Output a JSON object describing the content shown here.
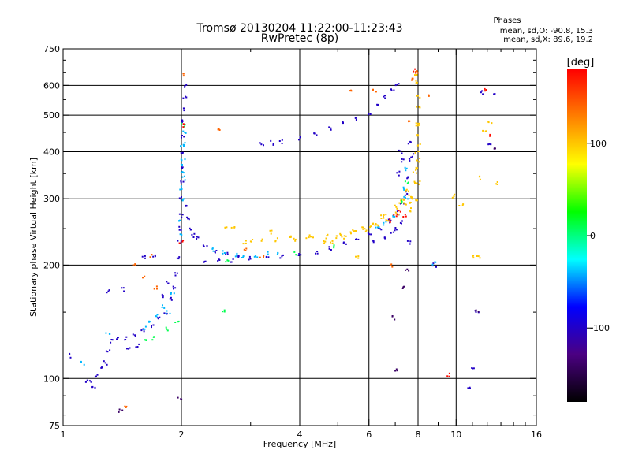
{
  "header": {
    "title": "Tromsø 20130204 11:22:00-11:23:43",
    "subtitle": "RwPretec (8p)"
  },
  "phases_box": {
    "heading": "Phases",
    "line_o": "mean, sd,O:  -90.8, 15.3",
    "line_x": "mean, sd,X:   89.6, 19.2"
  },
  "colorbar": {
    "unit_label": "[deg]",
    "tick_labels": [
      "100",
      "0",
      "-100"
    ],
    "tick_values": [
      100,
      0,
      -100
    ],
    "range": [
      -180,
      180
    ],
    "gradient_colors": [
      "#000000",
      "#4b0082",
      "#0000ff",
      "#00ffff",
      "#00ff00",
      "#ffff00",
      "#ff8000",
      "#ff0000"
    ]
  },
  "chart_data": {
    "type": "scatter",
    "xlabel": "Frequency [MHz]",
    "ylabel": "Stationary phase Virtual Height [km]",
    "x_scale": "log",
    "y_scale": "log",
    "xlim": [
      1,
      16
    ],
    "ylim": [
      75,
      750
    ],
    "x_ticks": [
      1,
      2,
      4,
      6,
      8,
      10,
      16
    ],
    "x_tick_labels": [
      "1",
      "2",
      "4",
      "6",
      "8",
      "10",
      "16"
    ],
    "x_gridlines": [
      2,
      4,
      6,
      8,
      10
    ],
    "y_ticks": [
      75,
      100,
      200,
      300,
      400,
      500,
      600,
      750
    ],
    "y_tick_labels": [
      "75",
      "100",
      "200",
      "300",
      "400",
      "500",
      "600",
      "750"
    ],
    "y_gridlines": [
      100,
      200,
      300,
      400,
      500,
      600
    ],
    "grid": true,
    "series": [
      {
        "mode": "O",
        "color_value": -100,
        "points": [
          [
            1.18,
            98
          ],
          [
            1.22,
            102
          ],
          [
            1.25,
            106
          ],
          [
            1.28,
            110
          ],
          [
            1.3,
            118
          ],
          [
            1.33,
            126
          ],
          [
            1.38,
            128
          ],
          [
            1.45,
            128
          ],
          [
            1.52,
            130
          ],
          [
            1.6,
            134
          ],
          [
            1.68,
            138
          ],
          [
            1.75,
            144
          ],
          [
            1.82,
            150
          ],
          [
            1.88,
            162
          ],
          [
            1.92,
            175
          ],
          [
            1.95,
            190
          ],
          [
            1.97,
            210
          ],
          [
            1.98,
            230
          ],
          [
            1.99,
            250
          ],
          [
            2.0,
            270
          ],
          [
            2.0,
            300
          ],
          [
            2.01,
            330
          ],
          [
            2.01,
            360
          ],
          [
            2.02,
            400
          ],
          [
            2.02,
            440
          ],
          [
            2.03,
            480
          ],
          [
            2.03,
            520
          ],
          [
            2.04,
            560
          ],
          [
            2.04,
            600
          ],
          [
            2.05,
            290
          ],
          [
            2.07,
            265
          ],
          [
            2.1,
            250
          ],
          [
            2.15,
            240
          ],
          [
            2.2,
            235
          ],
          [
            2.3,
            225
          ],
          [
            2.45,
            218
          ],
          [
            2.6,
            214
          ],
          [
            2.8,
            210
          ],
          [
            3.0,
            208
          ],
          [
            3.3,
            208
          ],
          [
            3.6,
            210
          ],
          [
            4.0,
            213
          ],
          [
            4.4,
            217
          ],
          [
            4.8,
            222
          ],
          [
            5.2,
            228
          ],
          [
            5.6,
            235
          ],
          [
            6.0,
            242
          ],
          [
            6.4,
            250
          ],
          [
            6.8,
            262
          ],
          [
            7.1,
            275
          ],
          [
            7.3,
            290
          ],
          [
            7.45,
            310
          ],
          [
            7.55,
            340
          ],
          [
            7.6,
            380
          ],
          [
            7.65,
            420
          ],
          [
            3.2,
            420
          ],
          [
            3.4,
            422
          ],
          [
            3.6,
            425
          ],
          [
            4.0,
            435
          ],
          [
            4.4,
            445
          ],
          [
            4.8,
            462
          ],
          [
            5.2,
            475
          ],
          [
            5.6,
            490
          ],
          [
            6.0,
            505
          ],
          [
            6.3,
            530
          ],
          [
            6.6,
            560
          ],
          [
            6.9,
            585
          ],
          [
            7.1,
            600
          ],
          [
            1.47,
            120
          ],
          [
            1.55,
            122
          ],
          [
            1.6,
            210
          ],
          [
            1.7,
            212
          ],
          [
            2.3,
            205
          ],
          [
            2.5,
            205
          ],
          [
            2.7,
            206
          ],
          [
            1.3,
            170
          ],
          [
            1.42,
            172
          ],
          [
            1.05,
            115
          ],
          [
            1.15,
            98
          ],
          [
            1.2,
            95
          ],
          [
            1.78,
            165
          ],
          [
            1.85,
            180
          ],
          [
            7.2,
            400
          ],
          [
            7.3,
            380
          ],
          [
            7.1,
            350
          ],
          [
            7.25,
            260
          ],
          [
            7.0,
            250
          ],
          [
            6.9,
            245
          ],
          [
            6.6,
            235
          ],
          [
            6.2,
            230
          ],
          [
            12.2,
            415
          ],
          [
            12.6,
            570
          ],
          [
            11.6,
            575
          ],
          [
            11.3,
            150
          ],
          [
            10.8,
            95
          ],
          [
            11.0,
            107
          ],
          [
            7.7,
            390
          ],
          [
            8.8,
            200
          ],
          [
            7.6,
            230
          ]
        ]
      },
      {
        "mode": "X",
        "color_value": 100,
        "points": [
          [
            2.9,
            230
          ],
          [
            3.2,
            232
          ],
          [
            3.5,
            233
          ],
          [
            3.9,
            234
          ],
          [
            4.3,
            236
          ],
          [
            4.7,
            238
          ],
          [
            5.1,
            240
          ],
          [
            5.5,
            244
          ],
          [
            5.9,
            248
          ],
          [
            6.3,
            255
          ],
          [
            6.7,
            265
          ],
          [
            7.1,
            275
          ],
          [
            7.4,
            290
          ],
          [
            7.65,
            305
          ],
          [
            7.8,
            330
          ],
          [
            7.9,
            360
          ],
          [
            7.95,
            400
          ],
          [
            7.98,
            440
          ],
          [
            8.0,
            480
          ],
          [
            8.0,
            520
          ],
          [
            8.0,
            560
          ],
          [
            7.95,
            610
          ],
          [
            7.9,
            640
          ],
          [
            2.6,
            250
          ],
          [
            3.4,
            245
          ],
          [
            3.8,
            240
          ],
          [
            4.2,
            238
          ],
          [
            4.6,
            230
          ],
          [
            5.0,
            238
          ],
          [
            5.4,
            245
          ],
          [
            5.8,
            250
          ],
          [
            6.2,
            258
          ],
          [
            6.6,
            270
          ],
          [
            7.0,
            285
          ],
          [
            7.3,
            300
          ],
          [
            7.5,
            315
          ],
          [
            7.7,
            280
          ],
          [
            7.9,
            300
          ],
          [
            8.0,
            330
          ],
          [
            8.05,
            380
          ],
          [
            8.05,
            420
          ],
          [
            7.8,
            300
          ],
          [
            7.6,
            290
          ],
          [
            3.0,
            233
          ],
          [
            2.7,
            252
          ],
          [
            6.1,
            255
          ],
          [
            6.5,
            268
          ],
          [
            7.2,
            295
          ],
          [
            7.85,
            355
          ],
          [
            7.98,
            470
          ],
          [
            11.5,
            340
          ],
          [
            12.2,
            480
          ],
          [
            11.8,
            450
          ],
          [
            12.8,
            330
          ],
          [
            9.8,
            305
          ],
          [
            10.3,
            290
          ],
          [
            11.4,
            210
          ],
          [
            11.0,
            210
          ],
          [
            5.6,
            210
          ],
          [
            4.8,
            230
          ],
          [
            5.2,
            237
          ]
        ]
      },
      {
        "mode": "cyan",
        "color_value": -40,
        "points": [
          [
            2.0,
            320
          ],
          [
            2.01,
            350
          ],
          [
            2.02,
            380
          ],
          [
            1.99,
            260
          ],
          [
            2.03,
            300
          ],
          [
            2.02,
            420
          ],
          [
            1.98,
            240
          ],
          [
            2.0,
            370
          ],
          [
            2.01,
            410
          ],
          [
            2.04,
            450
          ],
          [
            2.03,
            340
          ],
          [
            2.4,
            220
          ],
          [
            2.55,
            216
          ],
          [
            2.75,
            212
          ],
          [
            2.85,
            210
          ],
          [
            3.1,
            212
          ],
          [
            3.3,
            215
          ],
          [
            3.55,
            214
          ],
          [
            1.65,
            142
          ],
          [
            1.72,
            148
          ],
          [
            1.8,
            155
          ],
          [
            1.9,
            168
          ],
          [
            1.62,
            136
          ],
          [
            7.4,
            320
          ],
          [
            7.5,
            360
          ],
          [
            7.45,
            300
          ],
          [
            6.95,
            270
          ],
          [
            6.6,
            258
          ],
          [
            6.3,
            250
          ],
          [
            1.12,
            110
          ],
          [
            1.3,
            132
          ],
          [
            8.8,
            202
          ],
          [
            1.85,
            150
          ]
        ]
      },
      {
        "mode": "green",
        "color_value": 10,
        "points": [
          [
            1.95,
            140
          ],
          [
            1.7,
            128
          ],
          [
            1.62,
            126
          ],
          [
            2.62,
            205
          ],
          [
            3.9,
            214
          ],
          [
            4.9,
            225
          ],
          [
            1.85,
            135
          ],
          [
            2.02,
            470
          ],
          [
            2.55,
            150
          ],
          [
            7.5,
            330
          ],
          [
            7.3,
            295
          ]
        ]
      },
      {
        "mode": "orange",
        "color_value": 140,
        "points": [
          [
            2.03,
            640
          ],
          [
            1.52,
            200
          ],
          [
            1.6,
            185
          ],
          [
            1.72,
            175
          ],
          [
            1.45,
            84
          ],
          [
            2.5,
            460
          ],
          [
            6.2,
            580
          ],
          [
            7.9,
            650
          ],
          [
            7.75,
            620
          ],
          [
            7.6,
            480
          ],
          [
            6.8,
            200
          ],
          [
            5.4,
            580
          ],
          [
            1.68,
            212
          ],
          [
            3.2,
            210
          ],
          [
            2.9,
            220
          ],
          [
            8.5,
            560
          ]
        ]
      },
      {
        "mode": "red",
        "color_value": 175,
        "points": [
          [
            2.04,
            470
          ],
          [
            7.85,
            655
          ],
          [
            9.6,
            102
          ],
          [
            7.2,
            280
          ],
          [
            7.4,
            270
          ],
          [
            6.8,
            262
          ],
          [
            7.0,
            270
          ],
          [
            12.2,
            440
          ],
          [
            11.9,
            580
          ],
          [
            2.0,
            230
          ]
        ]
      },
      {
        "mode": "purple",
        "color_value": -140,
        "points": [
          [
            1.4,
            82
          ],
          [
            1.98,
            88
          ],
          [
            7.0,
            105
          ],
          [
            6.9,
            145
          ],
          [
            7.3,
            175
          ],
          [
            7.5,
            195
          ],
          [
            12.5,
            410
          ],
          [
            11.3,
            150
          ]
        ]
      }
    ]
  }
}
